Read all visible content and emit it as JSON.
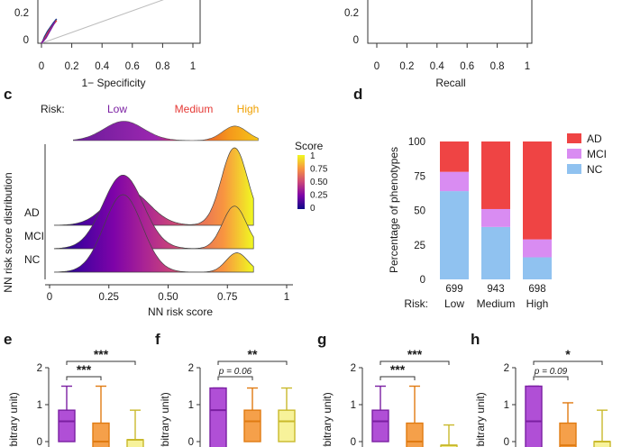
{
  "panel_labels": {
    "c": "c",
    "d": "d",
    "e": "e",
    "f": "f",
    "g": "g",
    "h": "h"
  },
  "colors": {
    "low": "#7b1fa2",
    "medium": "#e53935",
    "high": "#f0a000",
    "ad": "#ef4444",
    "mci": "#d98cf2",
    "nc": "#90c2f0",
    "box_purple": "#b04fd6",
    "box_orange": "#f5a04a",
    "box_yellow": "#f7f29a"
  },
  "chart_data": [
    {
      "id": "roc-partial",
      "type": "line",
      "xlabel": "1− Specificity",
      "ylabel": "",
      "x_ticks": [
        "0",
        "0.2",
        "0.4",
        "0.6",
        "0.8",
        "1"
      ],
      "y_ticks": [
        "0.2",
        "0"
      ],
      "xlim": [
        0,
        1
      ],
      "series": [
        {
          "x": [
            0,
            0.01,
            0.02,
            0.04,
            0.06,
            0.08,
            0.1
          ],
          "y": [
            0,
            0.05,
            0.12,
            0.22,
            0.3,
            0.38,
            0.45
          ]
        },
        {
          "x": [
            0,
            0.02,
            0.04,
            0.06,
            0.08,
            0.1
          ],
          "y": [
            0,
            0.08,
            0.18,
            0.27,
            0.35,
            0.42
          ]
        },
        {
          "x": [
            0,
            0.03,
            0.05,
            0.07,
            0.09
          ],
          "y": [
            0,
            0.1,
            0.2,
            0.3,
            0.4
          ]
        }
      ],
      "diagonal": true
    },
    {
      "id": "pr-partial",
      "type": "line",
      "xlabel": "Recall",
      "ylabel": "",
      "x_ticks": [
        "0",
        "0.2",
        "0.4",
        "0.6",
        "0.8",
        "1"
      ],
      "y_ticks": [
        "0.2",
        "0"
      ],
      "xlim": [
        0,
        1
      ],
      "series": []
    },
    {
      "id": "ridgeline",
      "type": "area",
      "xlabel": "NN risk score",
      "ylabel": "NN risk score distribution",
      "x_ticks": [
        "0",
        "0.25",
        "0.50",
        "0.75",
        "1"
      ],
      "xlim": [
        0,
        1
      ],
      "risk_label": "Risk:",
      "risk_groups": [
        "Low",
        "Medium",
        "High"
      ],
      "colorbar": {
        "title": "Score",
        "ticks": [
          "1",
          "0.75",
          "0.50",
          "0.25",
          "0"
        ]
      },
      "groups": [
        "AD",
        "MCI",
        "NC"
      ],
      "density_peaks": {
        "AD": [
          {
            "mu": 0.33,
            "sd": 0.09,
            "amp": 0.45
          },
          {
            "mu": 0.78,
            "sd": 0.055,
            "amp": 1.0
          }
        ],
        "MCI": [
          {
            "mu": 0.31,
            "sd": 0.085,
            "amp": 0.95
          },
          {
            "mu": 0.78,
            "sd": 0.05,
            "amp": 0.55
          }
        ],
        "NC": [
          {
            "mu": 0.31,
            "sd": 0.08,
            "amp": 1.0
          },
          {
            "mu": 0.79,
            "sd": 0.045,
            "amp": 0.25
          }
        ]
      }
    },
    {
      "id": "stacked-bar",
      "type": "bar",
      "ylabel": "Percentage of phenotypes",
      "ylim": [
        0,
        100
      ],
      "y_ticks": [
        0,
        25,
        50,
        75,
        100
      ],
      "categories": [
        "Low",
        "Medium",
        "High"
      ],
      "counts": [
        "699",
        "943",
        "698"
      ],
      "risk_label": "Risk:",
      "series": [
        {
          "name": "NC",
          "values": [
            64,
            38,
            16
          ]
        },
        {
          "name": "MCI",
          "values": [
            14,
            13,
            13
          ]
        },
        {
          "name": "AD",
          "values": [
            22,
            49,
            71
          ]
        }
      ],
      "legend": [
        "AD",
        "MCI",
        "NC"
      ],
      "legend_position": "right"
    }
  ],
  "box_panels": [
    {
      "label": "e",
      "sig_top": "***",
      "sig_mid": "***",
      "ylabel": "e (arbitrary unit)",
      "boxes": [
        {
          "q1": 0.0,
          "med": 0.55,
          "q3": 0.85,
          "hi": 1.5
        },
        {
          "q1": -0.2,
          "med": 0.0,
          "q3": 0.5,
          "hi": 1.5
        },
        {
          "q1": -0.2,
          "med": 0.05,
          "q3": 0.05,
          "hi": 0.85
        }
      ]
    },
    {
      "label": "f",
      "sig_top": "**",
      "sig_mid": "p = 0.06",
      "ylabel": "e (arbitrary unit)",
      "boxes": [
        {
          "q1": -0.2,
          "med": 0.85,
          "q3": 1.45,
          "hi": 1.45
        },
        {
          "q1": 0.0,
          "med": 0.55,
          "q3": 0.85,
          "hi": 1.45
        },
        {
          "q1": 0.0,
          "med": 0.55,
          "q3": 0.85,
          "hi": 1.45
        }
      ]
    },
    {
      "label": "g",
      "sig_top": "***",
      "sig_mid": "***",
      "ylabel": "e (arbitrary unit)",
      "boxes": [
        {
          "q1": 0.0,
          "med": 0.55,
          "q3": 0.85,
          "hi": 1.5
        },
        {
          "q1": -0.2,
          "med": 0.0,
          "q3": 0.5,
          "hi": 1.5
        },
        {
          "q1": -0.2,
          "med": -0.1,
          "q3": -0.1,
          "hi": 0.45
        }
      ]
    },
    {
      "label": "h",
      "sig_top": "*",
      "sig_mid": "p = 0.09",
      "ylabel": "e (arbitrary unit)",
      "boxes": [
        {
          "q1": -0.2,
          "med": 0.55,
          "q3": 1.5,
          "hi": 1.5
        },
        {
          "q1": -0.2,
          "med": -0.1,
          "q3": 0.5,
          "hi": 1.05
        },
        {
          "q1": -0.2,
          "med": 0.0,
          "q3": 0.0,
          "hi": 0.85
        }
      ]
    }
  ],
  "box_y_ticks": [
    "2",
    "1",
    "0"
  ]
}
